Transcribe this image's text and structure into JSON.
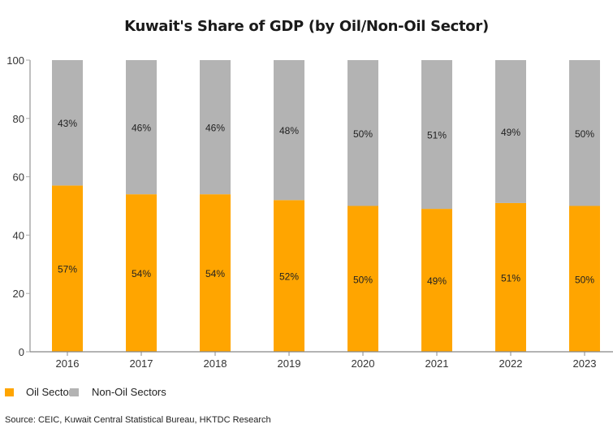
{
  "chart_data": {
    "type": "bar",
    "stacked": true,
    "title": "Kuwait's Share of GDP (by Oil/Non-Oil Sector)",
    "xlabel": "",
    "ylabel": "",
    "ylim": [
      0,
      100
    ],
    "yticks": [
      "0",
      "20",
      "40",
      "60",
      "80",
      "100"
    ],
    "grid": false,
    "categories": [
      "2016",
      "2017",
      "2018",
      "2019",
      "2020",
      "2021",
      "2022",
      "2023"
    ],
    "series": [
      {
        "name": "Oil Sector",
        "color": "#FFA500",
        "values": [
          57,
          54,
          54,
          52,
          50,
          49,
          51,
          50
        ],
        "labels": [
          "57%",
          "54%",
          "54%",
          "52%",
          "50%",
          "49%",
          "51%",
          "50%"
        ]
      },
      {
        "name": "Non-Oil Sectors",
        "color": "#B3B3B3",
        "values": [
          43,
          46,
          46,
          48,
          50,
          51,
          49,
          50
        ],
        "labels": [
          "43%",
          "46%",
          "46%",
          "48%",
          "50%",
          "51%",
          "49%",
          "50%"
        ]
      }
    ],
    "legend": {
      "position": "bottom-left",
      "entries": [
        "Oil Sector",
        "Non-Oil Sectors"
      ]
    },
    "source": "Source: CEIC, Kuwait Central Statistical Bureau, HKTDC Research"
  }
}
